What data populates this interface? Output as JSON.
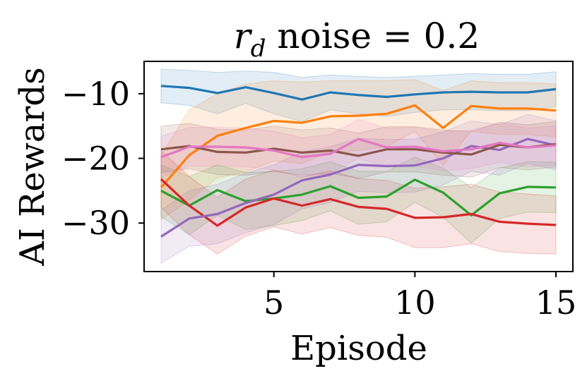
{
  "chart_data": {
    "type": "line",
    "title": {
      "symbol": "r",
      "subscript": "d",
      "rest": " noise = 0.2"
    },
    "xlabel": "Episode",
    "ylabel": "AI Rewards",
    "xlim": [
      0.4,
      15.6
    ],
    "ylim": [
      -37.5,
      -5
    ],
    "x_ticks": [
      5,
      10,
      15
    ],
    "y_ticks": [
      -10,
      -20,
      -30
    ],
    "x_tick_labels": [
      "5",
      "10",
      "15"
    ],
    "y_tick_labels": [
      "−10",
      "−20",
      "−30"
    ],
    "grid": false,
    "legend": "none",
    "x": [
      1,
      2,
      3,
      4,
      5,
      6,
      7,
      8,
      9,
      10,
      11,
      12,
      13,
      14,
      15
    ],
    "series": [
      {
        "name": "blue",
        "color": "#1f77b4",
        "values": [
          -8.8,
          -9.1,
          -9.9,
          -9.0,
          -9.9,
          -10.9,
          -9.8,
          -10.2,
          -10.5,
          -10.1,
          -9.8,
          -9.7,
          -9.8,
          -9.8,
          -9.3
        ],
        "upper": [
          -6.2,
          -6.4,
          -6.7,
          -6.5,
          -6.7,
          -7.5,
          -7.1,
          -7.3,
          -7.5,
          -7.3,
          -7.1,
          -6.9,
          -7.0,
          -7.0,
          -6.6
        ],
        "lower": [
          -11.4,
          -11.8,
          -13.1,
          -11.5,
          -13.1,
          -14.3,
          -12.5,
          -13.1,
          -13.5,
          -12.9,
          -12.5,
          -12.5,
          -12.6,
          -12.6,
          -12.0
        ]
      },
      {
        "name": "orange",
        "color": "#ff7f0e",
        "values": [
          -24.5,
          -19.5,
          -16.5,
          -15.3,
          -14.2,
          -14.5,
          -13.5,
          -13.4,
          -13.1,
          -11.8,
          -15.3,
          -11.9,
          -12.3,
          -12.3,
          -12.6
        ],
        "upper": [
          -19.5,
          -12.5,
          -10.0,
          -8.5,
          -8.0,
          -8.2,
          -8.0,
          -8.0,
          -8.0,
          -7.8,
          -9.5,
          -8.0,
          -8.3,
          -8.3,
          -8.5
        ],
        "lower": [
          -29.5,
          -26.5,
          -23.0,
          -22.1,
          -20.4,
          -20.8,
          -19.0,
          -18.8,
          -18.2,
          -15.8,
          -21.1,
          -15.8,
          -16.3,
          -16.3,
          -16.7
        ]
      },
      {
        "name": "green",
        "color": "#2ca02c",
        "values": [
          -25.0,
          -27.3,
          -24.9,
          -26.6,
          -26.2,
          -25.6,
          -24.3,
          -26.1,
          -25.9,
          -23.3,
          -25.3,
          -28.8,
          -25.4,
          -24.4,
          -24.5
        ],
        "upper": [
          -21.0,
          -22.8,
          -21.0,
          -22.2,
          -22.0,
          -21.6,
          -20.5,
          -22.0,
          -22.0,
          -19.8,
          -21.5,
          -24.5,
          -21.5,
          -20.5,
          -20.6
        ],
        "lower": [
          -29.0,
          -31.8,
          -28.8,
          -31.0,
          -30.4,
          -29.6,
          -28.1,
          -30.2,
          -29.8,
          -26.8,
          -29.1,
          -33.1,
          -29.3,
          -28.3,
          -28.4
        ]
      },
      {
        "name": "red",
        "color": "#d62728",
        "values": [
          -23.2,
          -27.3,
          -30.4,
          -27.6,
          -26.2,
          -27.3,
          -26.3,
          -27.5,
          -27.8,
          -29.2,
          -29.1,
          -28.6,
          -29.8,
          -30.1,
          -30.3
        ],
        "upper": [
          -18.8,
          -22.8,
          -26.0,
          -23.2,
          -21.8,
          -22.9,
          -21.9,
          -23.1,
          -23.4,
          -24.6,
          -24.4,
          -24.0,
          -25.2,
          -25.5,
          -25.8
        ],
        "lower": [
          -27.6,
          -31.8,
          -34.8,
          -32.0,
          -30.6,
          -31.7,
          -30.7,
          -31.9,
          -32.2,
          -33.8,
          -33.8,
          -33.2,
          -34.4,
          -34.7,
          -34.8
        ]
      },
      {
        "name": "purple",
        "color": "#9467bd",
        "values": [
          -32.1,
          -29.3,
          -28.6,
          -26.9,
          -25.6,
          -23.4,
          -22.5,
          -21.0,
          -21.2,
          -21.1,
          -20.0,
          -18.1,
          -18.7,
          -17.0,
          -18.0
        ],
        "upper": [
          -28.0,
          -25.0,
          -24.0,
          -22.3,
          -21.0,
          -19.0,
          -18.2,
          -16.9,
          -17.1,
          -17.0,
          -15.9,
          -14.2,
          -14.8,
          -13.2,
          -14.2
        ],
        "lower": [
          -36.2,
          -33.6,
          -33.2,
          -31.5,
          -30.2,
          -27.8,
          -26.8,
          -25.1,
          -25.3,
          -25.2,
          -24.1,
          -22.0,
          -22.6,
          -20.8,
          -21.8
        ]
      },
      {
        "name": "brown",
        "color": "#8c564b",
        "values": [
          -18.6,
          -18.1,
          -19.0,
          -19.1,
          -18.5,
          -19.1,
          -18.8,
          -19.6,
          -18.6,
          -18.6,
          -19.1,
          -19.4,
          -17.9,
          -18.3,
          -17.8
        ],
        "upper": [
          -15.0,
          -14.6,
          -15.5,
          -15.6,
          -15.0,
          -15.6,
          -15.3,
          -16.1,
          -15.1,
          -15.1,
          -15.6,
          -15.9,
          -14.4,
          -14.8,
          -14.3
        ],
        "lower": [
          -22.2,
          -21.6,
          -22.5,
          -22.6,
          -22.0,
          -22.6,
          -22.3,
          -23.1,
          -22.1,
          -22.1,
          -22.6,
          -22.9,
          -21.4,
          -21.8,
          -21.3
        ]
      },
      {
        "name": "pink",
        "color": "#e377c2",
        "values": [
          -19.8,
          -18.2,
          -18.2,
          -18.3,
          -18.8,
          -19.8,
          -19.3,
          -17.0,
          -18.3,
          -18.2,
          -18.9,
          -18.6,
          -17.6,
          -18.3,
          -18.0
        ],
        "upper": [
          -16.6,
          -15.2,
          -15.2,
          -15.3,
          -15.8,
          -16.8,
          -16.3,
          -14.0,
          -15.3,
          -15.2,
          -15.9,
          -15.6,
          -14.6,
          -15.3,
          -15.0
        ],
        "lower": [
          -23.0,
          -21.2,
          -21.2,
          -21.3,
          -21.8,
          -22.8,
          -22.3,
          -20.0,
          -21.3,
          -21.2,
          -21.9,
          -21.6,
          -20.6,
          -21.3,
          -21.0
        ]
      }
    ]
  }
}
